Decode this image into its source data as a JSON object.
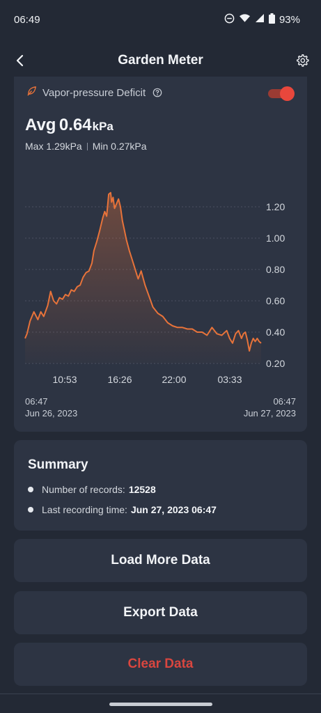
{
  "status": {
    "time": "06:49",
    "battery": "93%",
    "icons": [
      "do-not-disturb-icon",
      "wifi-icon",
      "signal-icon",
      "battery-icon"
    ]
  },
  "app_bar": {
    "title": "Garden Meter",
    "back_icon": "back-arrow-icon",
    "settings_icon": "gear-icon"
  },
  "metric": {
    "name": "Vapor-pressure Deficit",
    "icon": "leaf-icon",
    "help_icon": "help-circle-icon",
    "toggle_on": true,
    "avg_label": "Avg",
    "avg_value": "0.64",
    "unit": "kPa",
    "max_text": "Max 1.29kPa",
    "min_text": "Min 0.27kPa",
    "accent": "#e8733a"
  },
  "chart_data": {
    "type": "area",
    "x_tick_labels": [
      "10:53",
      "16:26",
      "22:00",
      "03:33"
    ],
    "y_tick_labels": [
      "0.20",
      "0.40",
      "0.60",
      "0.80",
      "1.00",
      "1.20"
    ],
    "ylim": [
      0.2,
      1.3
    ],
    "xlim_hours": [
      0,
      24
    ],
    "grid": true,
    "series": [
      {
        "x_hours": [
          0.0,
          0.2,
          0.5,
          0.9,
          1.3,
          1.6,
          1.9,
          2.3,
          2.6,
          2.9,
          3.2,
          3.5,
          3.8,
          4.1,
          4.4,
          4.7,
          5.0,
          5.3,
          5.6,
          5.9,
          6.2,
          6.5,
          6.8,
          7.0,
          7.3,
          7.6,
          7.9,
          8.1,
          8.3,
          8.5,
          8.7,
          8.8,
          8.95,
          9.1,
          9.3,
          9.5,
          9.7,
          9.9,
          10.1,
          10.3,
          10.6,
          10.9,
          11.2,
          11.5,
          11.8,
          12.2,
          12.6,
          13.0,
          13.5,
          14.0,
          14.5,
          15.0,
          15.5,
          16.0,
          16.5,
          17.0,
          17.5,
          18.0,
          18.5,
          19.0,
          19.5,
          20.0,
          20.5,
          20.8,
          21.1,
          21.4,
          21.7,
          22.0,
          22.2,
          22.4,
          22.6,
          22.8,
          23.0,
          23.2,
          23.4,
          23.6,
          23.8,
          24.0
        ],
        "values": [
          0.36,
          0.39,
          0.47,
          0.53,
          0.48,
          0.53,
          0.5,
          0.57,
          0.66,
          0.6,
          0.58,
          0.62,
          0.61,
          0.64,
          0.63,
          0.67,
          0.66,
          0.69,
          0.7,
          0.75,
          0.78,
          0.79,
          0.84,
          0.92,
          0.98,
          1.05,
          1.13,
          1.17,
          1.14,
          1.28,
          1.29,
          1.23,
          1.26,
          1.19,
          1.22,
          1.25,
          1.2,
          1.11,
          1.05,
          0.99,
          0.92,
          0.86,
          0.8,
          0.74,
          0.79,
          0.7,
          0.63,
          0.56,
          0.52,
          0.5,
          0.46,
          0.44,
          0.43,
          0.43,
          0.42,
          0.42,
          0.4,
          0.4,
          0.38,
          0.43,
          0.39,
          0.38,
          0.41,
          0.36,
          0.33,
          0.39,
          0.41,
          0.36,
          0.39,
          0.4,
          0.35,
          0.28,
          0.33,
          0.36,
          0.34,
          0.36,
          0.34,
          0.33
        ]
      }
    ]
  },
  "range": {
    "start_time": "06:47",
    "start_date": "Jun 26, 2023",
    "end_time": "06:47",
    "end_date": "Jun 27, 2023"
  },
  "summary": {
    "title": "Summary",
    "records_label": "Number of records:",
    "records_value": "12528",
    "last_label": "Last recording time:",
    "last_value": "Jun 27, 2023 06:47"
  },
  "buttons": {
    "load_more": "Load More Data",
    "export": "Export Data",
    "clear": "Clear Data"
  }
}
